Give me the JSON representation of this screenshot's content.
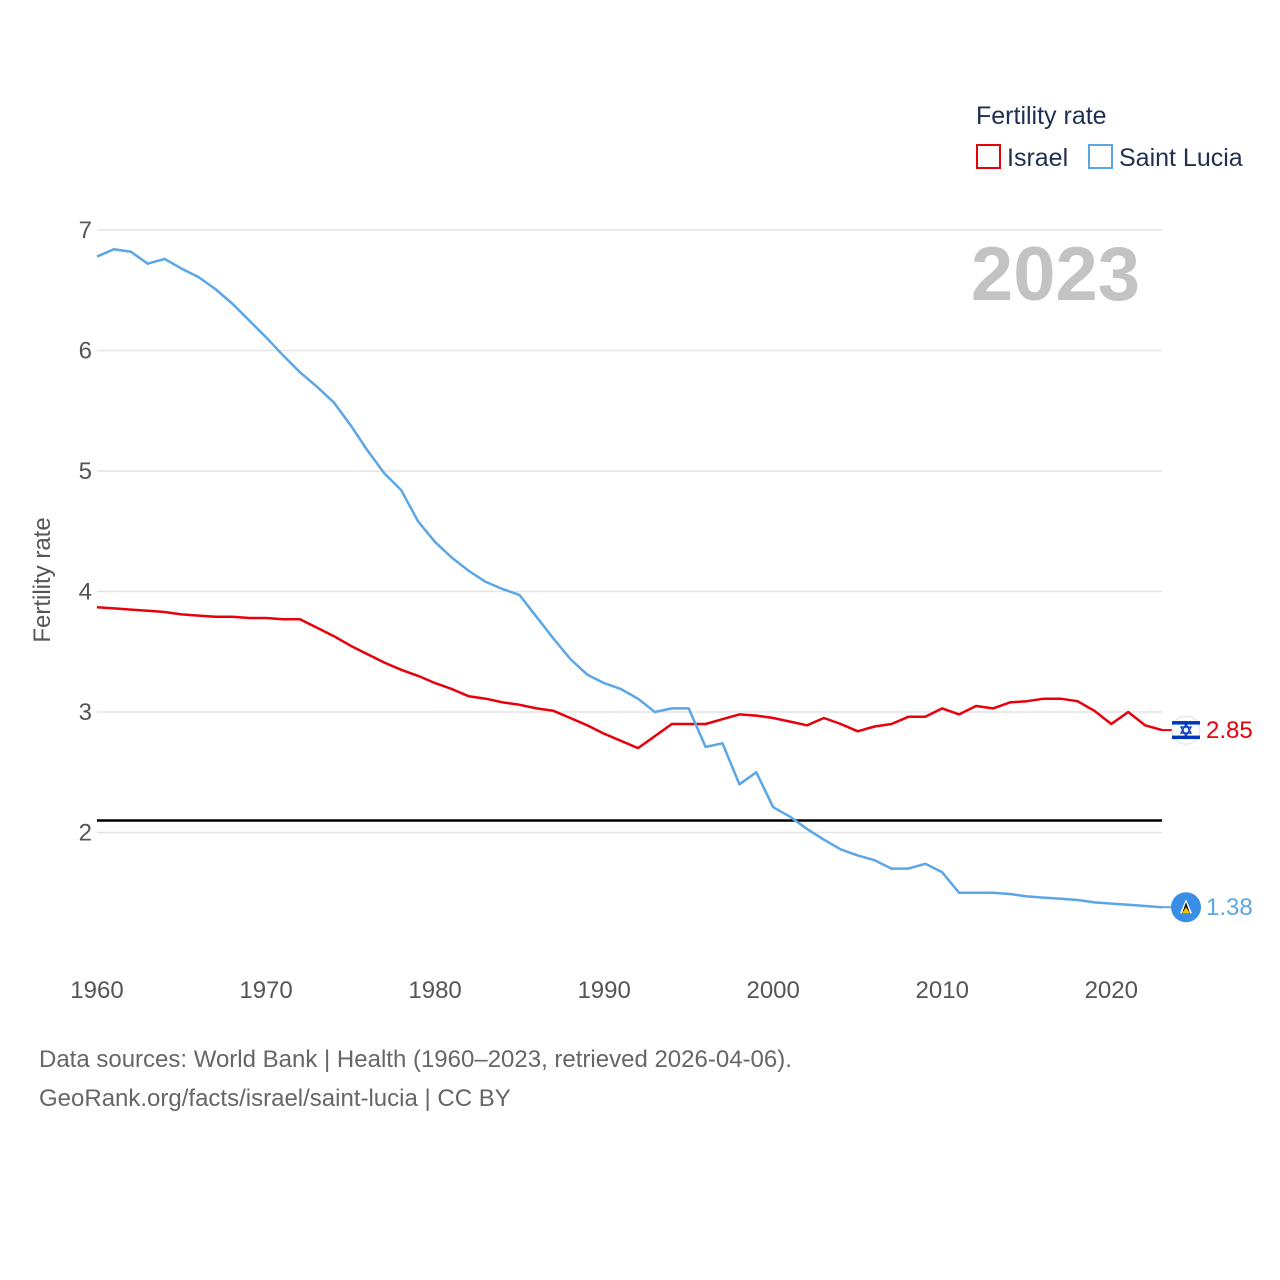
{
  "chart_data": {
    "type": "line",
    "legend_title": "Fertility rate",
    "ylabel": "Fertility rate",
    "year_label": "2023",
    "xlim": [
      1960,
      2023
    ],
    "ylim": [
      1.0,
      7.0
    ],
    "yticks": [
      2,
      3,
      4,
      5,
      6,
      7
    ],
    "xticks": [
      1960,
      1970,
      1980,
      1990,
      2000,
      2010,
      2020
    ],
    "reference_line": 2.1,
    "x": [
      1960,
      1961,
      1962,
      1963,
      1964,
      1965,
      1966,
      1967,
      1968,
      1969,
      1970,
      1971,
      1972,
      1973,
      1974,
      1975,
      1976,
      1977,
      1978,
      1979,
      1980,
      1981,
      1982,
      1983,
      1984,
      1985,
      1986,
      1987,
      1988,
      1989,
      1990,
      1991,
      1992,
      1993,
      1994,
      1995,
      1996,
      1997,
      1998,
      1999,
      2000,
      2001,
      2002,
      2003,
      2004,
      2005,
      2006,
      2007,
      2008,
      2009,
      2010,
      2011,
      2012,
      2013,
      2014,
      2015,
      2016,
      2017,
      2018,
      2019,
      2020,
      2021,
      2022,
      2023
    ],
    "series": [
      {
        "name": "Israel",
        "color": "#e8000b",
        "end_label": "2.85",
        "flag": "israel-flag",
        "values": [
          3.87,
          3.86,
          3.85,
          3.84,
          3.83,
          3.81,
          3.8,
          3.79,
          3.79,
          3.78,
          3.78,
          3.77,
          3.77,
          3.7,
          3.63,
          3.55,
          3.48,
          3.41,
          3.35,
          3.3,
          3.24,
          3.19,
          3.13,
          3.11,
          3.08,
          3.06,
          3.03,
          3.01,
          2.95,
          2.89,
          2.82,
          2.76,
          2.7,
          2.8,
          2.9,
          2.9,
          2.9,
          2.94,
          2.98,
          2.97,
          2.95,
          2.92,
          2.89,
          2.95,
          2.9,
          2.84,
          2.88,
          2.9,
          2.96,
          2.96,
          3.03,
          2.98,
          3.05,
          3.03,
          3.08,
          3.09,
          3.11,
          3.11,
          3.09,
          3.01,
          2.9,
          3.0,
          2.89,
          2.85
        ]
      },
      {
        "name": "Saint Lucia",
        "color": "#5ba6e6",
        "end_label": "1.38",
        "flag": "saint-lucia-flag",
        "values": [
          6.78,
          6.84,
          6.82,
          6.72,
          6.76,
          6.68,
          6.61,
          6.51,
          6.39,
          6.25,
          6.11,
          5.96,
          5.82,
          5.7,
          5.57,
          5.38,
          5.17,
          4.98,
          4.84,
          4.58,
          4.41,
          4.28,
          4.17,
          4.08,
          4.02,
          3.97,
          3.79,
          3.61,
          3.44,
          3.31,
          3.24,
          3.19,
          3.11,
          3.0,
          3.03,
          3.03,
          2.71,
          2.74,
          2.4,
          2.5,
          2.21,
          2.13,
          2.03,
          1.94,
          1.86,
          1.81,
          1.77,
          1.7,
          1.7,
          1.74,
          1.67,
          1.5,
          1.5,
          1.5,
          1.49,
          1.47,
          1.46,
          1.45,
          1.44,
          1.42,
          1.41,
          1.4,
          1.39,
          1.38
        ]
      }
    ]
  },
  "footer": {
    "line1": "Data sources: World Bank | Health (1960–2023, retrieved 2026-04-06).",
    "line2": "GeoRank.org/facts/israel/saint-lucia | CC BY"
  }
}
